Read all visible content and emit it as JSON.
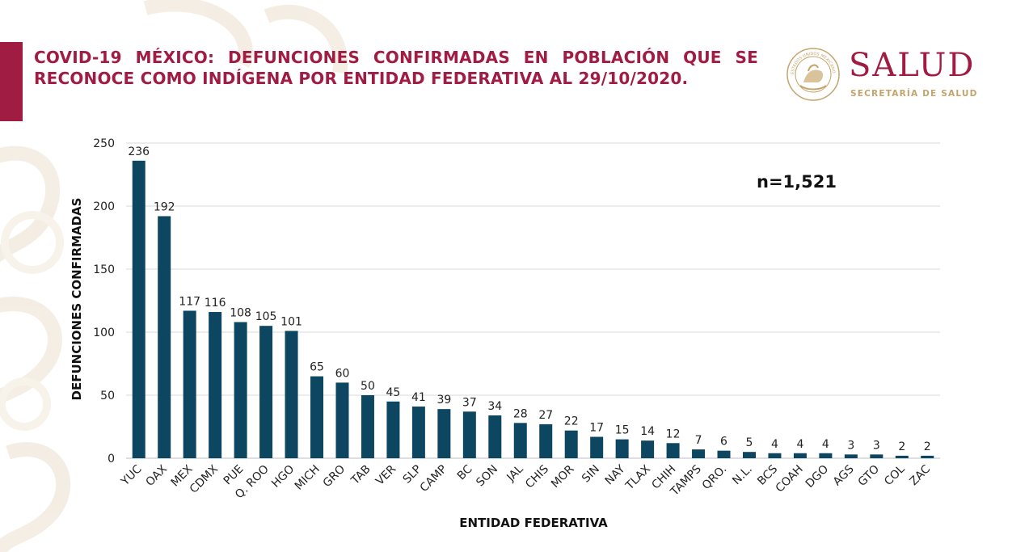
{
  "header": {
    "title": "COVID-19 MÉXICO: DEFUNCIONES CONFIRMADAS EN POBLACIÓN QUE SE RECONOCE COMO INDÍGENA POR ENTIDAD FEDERATIVA AL 29/10/2020.",
    "logo_word": "SALUD",
    "logo_subtitle": "SECRETARÍA DE SALUD",
    "seal_text": "ESTADOS UNIDOS MEXICANOS"
  },
  "colors": {
    "brand": "#a11c43",
    "gold": "#c4a46b",
    "bar": "#0d4661"
  },
  "chart_data": {
    "type": "bar",
    "title": "",
    "annotation": "n=1,521",
    "xlabel": "ENTIDAD FEDERATIVA",
    "ylabel": "DEFUNCIONES CONFIRMADAS",
    "ylim": [
      0,
      250
    ],
    "yticks": [
      0,
      50,
      100,
      150,
      200,
      250
    ],
    "grid": true,
    "categories": [
      "YUC",
      "OAX",
      "MEX",
      "CDMX",
      "PUE",
      "Q. ROO",
      "HGO",
      "MICH",
      "GRO",
      "TAB",
      "VER",
      "SLP",
      "CAMP",
      "BC",
      "SON",
      "JAL",
      "CHIS",
      "MOR",
      "SIN",
      "NAY",
      "TLAX",
      "CHIH",
      "TAMPS",
      "QRO.",
      "N.L.",
      "BCS",
      "COAH",
      "DGO",
      "AGS",
      "GTO",
      "COL",
      "ZAC"
    ],
    "values": [
      236,
      192,
      117,
      116,
      108,
      105,
      101,
      65,
      60,
      50,
      45,
      41,
      39,
      37,
      34,
      28,
      27,
      22,
      17,
      15,
      14,
      12,
      7,
      6,
      5,
      4,
      4,
      4,
      3,
      3,
      2,
      2
    ]
  }
}
